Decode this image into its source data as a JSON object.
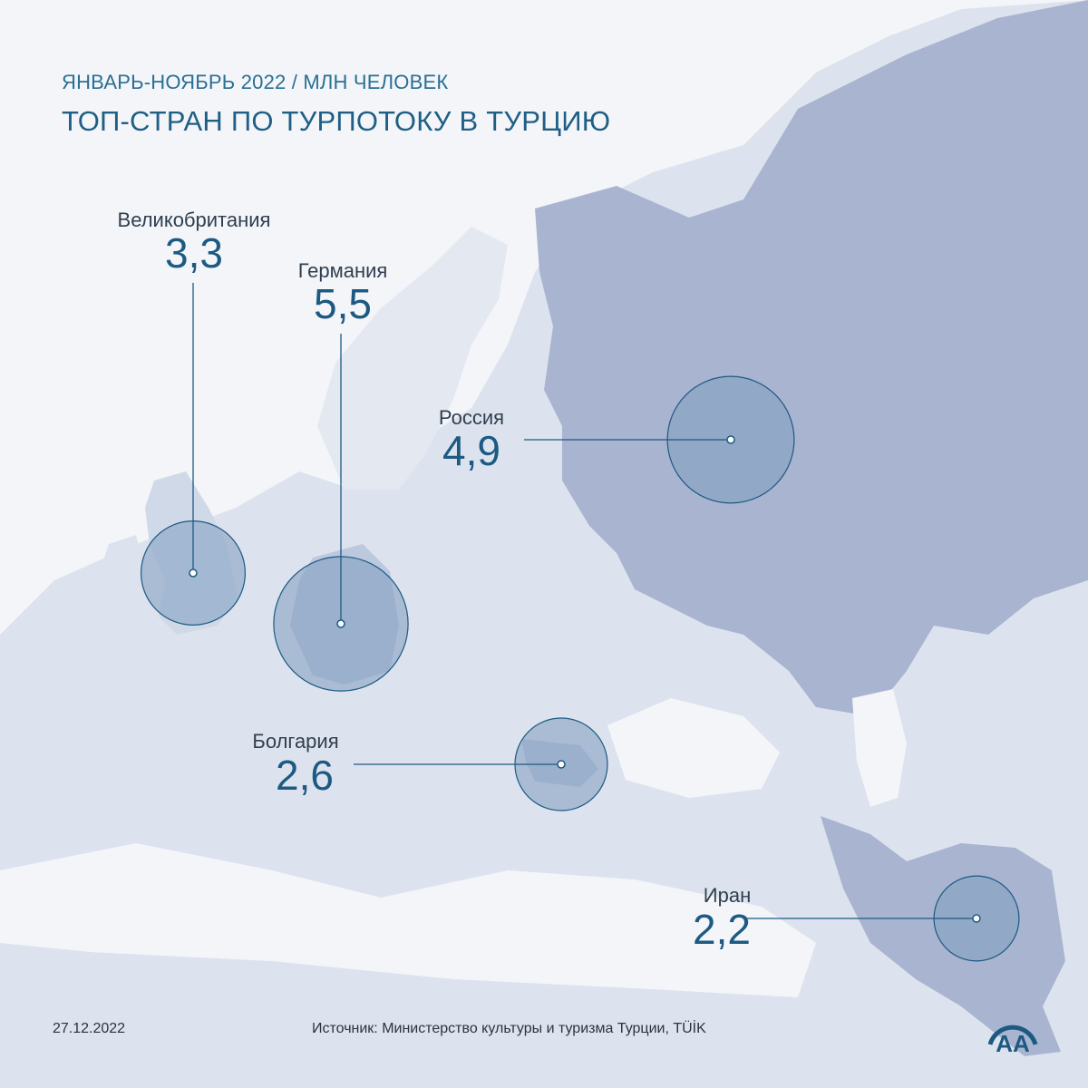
{
  "header": {
    "subtitle": "ЯНВАРЬ-НОЯБРЬ 2022 / МЛН ЧЕЛОВЕК",
    "title": "ТОП-СТРАН ПО ТУРПОТОКУ В ТУРЦИЮ"
  },
  "countries": [
    {
      "id": "uk",
      "name": "Великобритания",
      "value": "3,3"
    },
    {
      "id": "germany",
      "name": "Германия",
      "value": "5,5"
    },
    {
      "id": "russia",
      "name": "Россия",
      "value": "4,9"
    },
    {
      "id": "bulgaria",
      "name": "Болгария",
      "value": "2,6"
    },
    {
      "id": "iran",
      "name": "Иран",
      "value": "2,2"
    }
  ],
  "footer": {
    "date": "27.12.2022",
    "source": "Источник: Министерство культуры и туризма Турции, TÜİK"
  },
  "logo": {
    "text": "AA",
    "icon": "anadolu-agency-logo-icon"
  },
  "colors": {
    "accent": "#1d5a82",
    "land": "#dde3ee",
    "russia": "#a9b5d0",
    "bubble": "#7d9dc0"
  }
}
